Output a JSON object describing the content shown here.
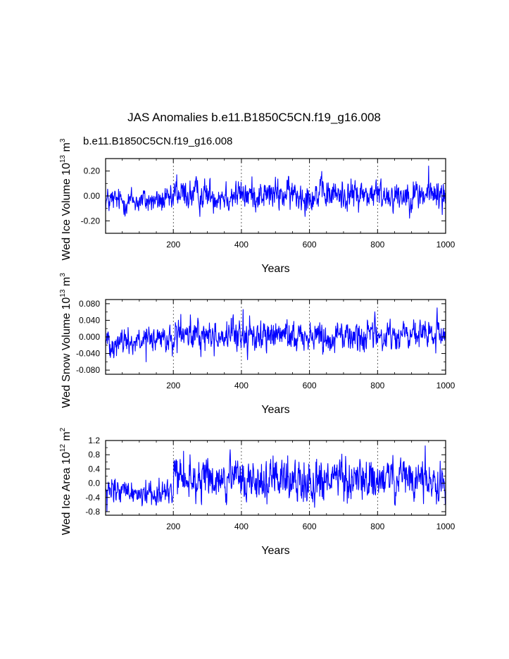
{
  "figure": {
    "title": "JAS Anomalies b.e11.B1850C5CN.f19_g16.008",
    "subtitle": "b.e11.B1850C5CN.f19_g16.008",
    "subtitle_color": "#0000ff"
  },
  "chart_data": [
    {
      "type": "line",
      "ylabel": {
        "prefix": "Wed Ice Volume 10",
        "exp": "13",
        "unit": " m",
        "unit_exp": "3"
      },
      "xlabel": "Years",
      "xlim": [
        1,
        1000
      ],
      "ylim": [
        -0.3,
        0.3
      ],
      "x_ticks": [
        200,
        400,
        600,
        800,
        1000
      ],
      "x_tick_labels": [
        "200",
        "400",
        "600",
        "800",
        "1000"
      ],
      "y_ticks": [
        -0.2,
        0.0,
        0.2
      ],
      "y_tick_labels": [
        "-0.20",
        "0.00",
        "0.20"
      ],
      "vertical_gridlines": [
        200,
        400,
        600,
        800
      ],
      "line_color": "#0000ff",
      "series_segments": [
        {
          "x": [
            1,
            200
          ],
          "mean": -0.04,
          "std": 0.045
        },
        {
          "x": [
            200,
            1000
          ],
          "mean": 0.01,
          "std": 0.055
        }
      ],
      "notable_values": [
        {
          "x": 950,
          "y": 0.24
        },
        {
          "x": 990,
          "y": -0.15
        },
        {
          "x": 210,
          "y": 0.17
        }
      ]
    },
    {
      "type": "line",
      "ylabel": {
        "prefix": "Wed Snow Volume 10",
        "exp": "13",
        "unit": " m",
        "unit_exp": "3"
      },
      "xlabel": "Years",
      "xlim": [
        1,
        1000
      ],
      "ylim": [
        -0.09,
        0.09
      ],
      "x_ticks": [
        200,
        400,
        600,
        800,
        1000
      ],
      "x_tick_labels": [
        "200",
        "400",
        "600",
        "800",
        "1000"
      ],
      "y_ticks": [
        -0.08,
        -0.04,
        0.0,
        0.04,
        0.08
      ],
      "y_tick_labels": [
        "-0.080",
        "-0.040",
        "0.000",
        "0.040",
        "0.080"
      ],
      "vertical_gridlines": [
        200,
        400,
        600,
        800
      ],
      "line_color": "#0000ff",
      "series_segments": [
        {
          "x": [
            1,
            200
          ],
          "mean": -0.01,
          "std": 0.015
        },
        {
          "x": [
            200,
            1000
          ],
          "mean": 0.003,
          "std": 0.017
        }
      ],
      "notable_values": [
        {
          "x": 405,
          "y": 0.066
        },
        {
          "x": 975,
          "y": 0.07
        },
        {
          "x": 120,
          "y": -0.06
        }
      ]
    },
    {
      "type": "line",
      "ylabel": {
        "prefix": "Wed Ice Area 10",
        "exp": "12",
        "unit": " m",
        "unit_exp": "2"
      },
      "xlabel": "Years",
      "xlim": [
        1,
        1000
      ],
      "ylim": [
        -0.9,
        1.2
      ],
      "x_ticks": [
        200,
        400,
        600,
        800,
        1000
      ],
      "x_tick_labels": [
        "200",
        "400",
        "600",
        "800",
        "1000"
      ],
      "y_ticks": [
        -0.8,
        -0.4,
        0.0,
        0.4,
        0.8,
        1.2
      ],
      "y_tick_labels": [
        "-0.8",
        "-0.4",
        "0.0",
        "0.4",
        "0.8",
        "1.2"
      ],
      "vertical_gridlines": [
        200,
        400,
        600,
        800
      ],
      "line_color": "#0000ff",
      "series_segments": [
        {
          "x": [
            1,
            200
          ],
          "mean": -0.25,
          "std": 0.17
        },
        {
          "x": [
            200,
            1000
          ],
          "mean": 0.08,
          "std": 0.27
        }
      ],
      "notable_values": [
        {
          "x": 940,
          "y": 1.05
        },
        {
          "x": 230,
          "y": 0.9
        },
        {
          "x": 5,
          "y": -0.8
        }
      ]
    }
  ]
}
